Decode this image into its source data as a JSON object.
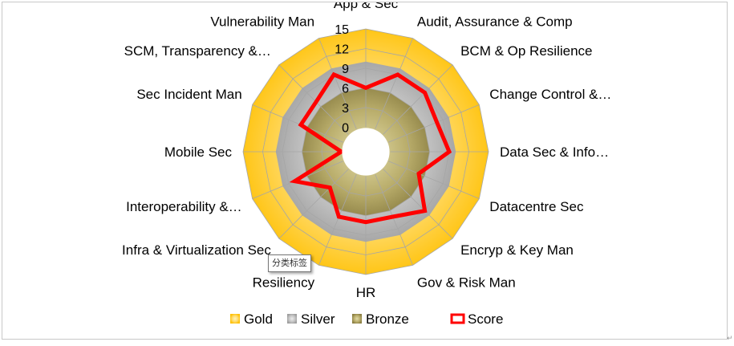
{
  "chart_data": {
    "type": "radar",
    "categories": [
      "App & Sec",
      "Audit, Assurance & Comp",
      "BCM & Op Resilience",
      "Change Control &…",
      "Data Sec & Info…",
      "Datacentre Sec",
      "Encryp & Key Man",
      "Gov & Risk Man",
      "HR",
      "Resiliency",
      "Infra & Virtualization Sec",
      "Interoperability &…",
      "Mobile Sec",
      "Sec Incident Man",
      "SCM, Transparency &…",
      "Vulnerability Man"
    ],
    "r_ticks": [
      "0",
      "3",
      "6",
      "9",
      "12",
      "15"
    ],
    "r_range": [
      0,
      15
    ],
    "series": [
      {
        "name": "Gold",
        "style": "filled-area",
        "color": "#ffc000",
        "values": [
          15,
          15,
          15,
          15,
          15,
          15,
          15,
          15,
          15,
          15,
          15,
          15,
          15,
          15,
          15,
          15
        ]
      },
      {
        "name": "Silver",
        "style": "filled-area",
        "color": "#a5a5a5",
        "values": [
          10,
          10,
          10,
          10,
          10,
          10,
          10,
          10,
          10,
          10,
          10,
          10,
          10,
          10,
          10,
          10
        ]
      },
      {
        "name": "Bronze",
        "style": "filled-area",
        "color": "#9b8e4a",
        "values": [
          6,
          6,
          6,
          6,
          6,
          6,
          6,
          6,
          6,
          6,
          6,
          6,
          6,
          6,
          6,
          6
        ]
      },
      {
        "name": "Score",
        "style": "line",
        "color": "#ff0000",
        "values": [
          6,
          9,
          9,
          8,
          9,
          5,
          9,
          7,
          7,
          7,
          4,
          8,
          0,
          7,
          7,
          9
        ]
      }
    ],
    "legend_position": "bottom",
    "gridlines": true
  },
  "tooltip": {
    "text": "分类标签"
  },
  "corner_mark": "↵"
}
